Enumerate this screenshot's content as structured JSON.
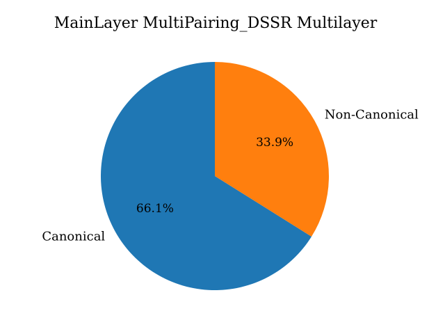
{
  "chart_data": {
    "type": "pie",
    "title": "MainLayer MultiPairing_DSSR Multilayer",
    "slices": [
      {
        "label": "Canonical",
        "value": 66.1,
        "percent_label": "66.1%",
        "color": "#1f77b4"
      },
      {
        "label": "Non-Canonical",
        "value": 33.9,
        "percent_label": "33.9%",
        "color": "#ff7f0e"
      }
    ],
    "start_angle_deg": 90,
    "direction": "counterclockwise",
    "legend": "none"
  }
}
